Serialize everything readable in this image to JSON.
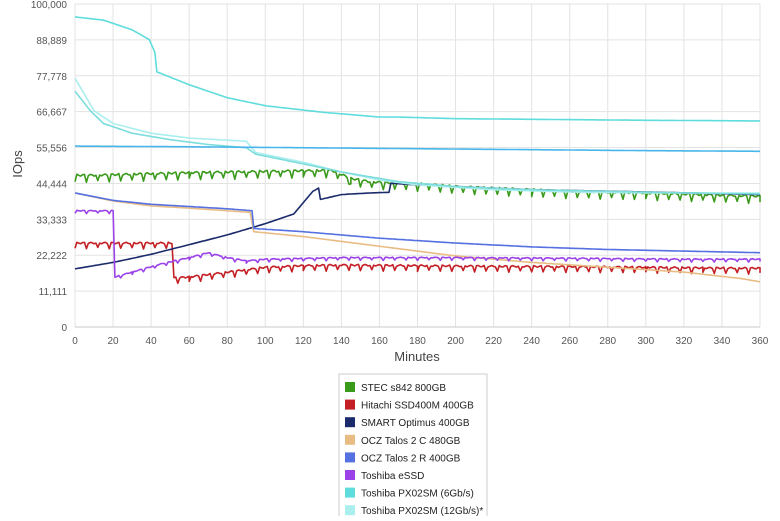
{
  "chart_data": {
    "type": "line",
    "title": "",
    "xlabel": "Minutes",
    "ylabel": "IOps",
    "xlim": [
      0,
      360
    ],
    "ylim": [
      0,
      100000
    ],
    "x_ticks": [
      0,
      20,
      40,
      60,
      80,
      100,
      120,
      140,
      160,
      180,
      200,
      220,
      240,
      260,
      280,
      300,
      320,
      340,
      360
    ],
    "y_ticks": [
      0,
      11111,
      22222,
      33333,
      44444,
      55556,
      66667,
      77778,
      88889,
      100000
    ],
    "y_tick_labels": [
      "0",
      "11,111",
      "22,222",
      "33,333",
      "44,444",
      "55,556",
      "66,667",
      "77,778",
      "88,889",
      "100,000"
    ],
    "grid": true,
    "legend_position": "bottom-center",
    "series": [
      {
        "name": "STEC s842 800GB",
        "color": "#3a9a1b",
        "points": [
          [
            0,
            47000
          ],
          [
            10,
            47000
          ],
          [
            22,
            47200
          ],
          [
            40,
            47500
          ],
          [
            60,
            47800
          ],
          [
            80,
            48000
          ],
          [
            100,
            48200
          ],
          [
            120,
            48400
          ],
          [
            135,
            48500
          ],
          [
            145,
            46000
          ],
          [
            155,
            45000
          ],
          [
            170,
            44500
          ],
          [
            185,
            44200
          ],
          [
            200,
            43500
          ],
          [
            220,
            43000
          ],
          [
            240,
            42500
          ],
          [
            260,
            42000
          ],
          [
            280,
            41800
          ],
          [
            300,
            41500
          ],
          [
            320,
            41200
          ],
          [
            340,
            40800
          ],
          [
            360,
            40500
          ]
        ],
        "sawtooth": 2000
      },
      {
        "name": "Hitachi SSD400M 400GB",
        "color": "#c31f24",
        "points": [
          [
            0,
            26000
          ],
          [
            20,
            26000
          ],
          [
            40,
            26000
          ],
          [
            51,
            26000
          ],
          [
            52,
            15200
          ],
          [
            60,
            15500
          ],
          [
            80,
            17000
          ],
          [
            100,
            18500
          ],
          [
            120,
            19000
          ],
          [
            140,
            19200
          ],
          [
            180,
            19000
          ],
          [
            220,
            18800
          ],
          [
            260,
            18700
          ],
          [
            300,
            18500
          ],
          [
            330,
            18300
          ],
          [
            360,
            18200
          ]
        ],
        "sawtooth": 1600
      },
      {
        "name": "SMART Optimus 400GB",
        "color": "#1b2a6b",
        "points": [
          [
            0,
            18000
          ],
          [
            20,
            20000
          ],
          [
            40,
            22500
          ],
          [
            60,
            25500
          ],
          [
            80,
            28500
          ],
          [
            100,
            32000
          ],
          [
            115,
            35000
          ],
          [
            125,
            42000
          ],
          [
            128,
            43000
          ],
          [
            129,
            39500
          ],
          [
            140,
            41000
          ],
          [
            155,
            41500
          ],
          [
            165,
            41700
          ],
          [
            166,
            44500
          ],
          [
            180,
            44000
          ],
          [
            200,
            43500
          ],
          [
            240,
            42500
          ],
          [
            300,
            41800
          ],
          [
            360,
            41000
          ]
        ],
        "sawtooth": 0
      },
      {
        "name": "OCZ Talos 2 C 480GB",
        "color": "#e9bc84",
        "points": [
          [
            0,
            41500
          ],
          [
            20,
            39000
          ],
          [
            40,
            37500
          ],
          [
            60,
            36800
          ],
          [
            80,
            36000
          ],
          [
            92,
            35500
          ],
          [
            94,
            29500
          ],
          [
            120,
            28000
          ],
          [
            160,
            25000
          ],
          [
            200,
            22000
          ],
          [
            240,
            20000
          ],
          [
            280,
            18500
          ],
          [
            320,
            17000
          ],
          [
            350,
            15000
          ],
          [
            360,
            14000
          ]
        ],
        "sawtooth": 0
      },
      {
        "name": "OCZ Talos 2 R 400GB",
        "color": "#5570e0",
        "points": [
          [
            0,
            41500
          ],
          [
            20,
            39200
          ],
          [
            40,
            38000
          ],
          [
            60,
            37300
          ],
          [
            80,
            36600
          ],
          [
            93,
            36000
          ],
          [
            94,
            30500
          ],
          [
            120,
            29500
          ],
          [
            160,
            27500
          ],
          [
            200,
            26000
          ],
          [
            240,
            24800
          ],
          [
            280,
            24000
          ],
          [
            320,
            23500
          ],
          [
            360,
            23000
          ]
        ],
        "sawtooth": 0
      },
      {
        "name": "Toshiba eSSD",
        "color": "#9b43e8",
        "points": [
          [
            0,
            36000
          ],
          [
            20,
            36000
          ],
          [
            21,
            15500
          ],
          [
            30,
            17000
          ],
          [
            45,
            19500
          ],
          [
            60,
            21500
          ],
          [
            70,
            23000
          ],
          [
            80,
            21500
          ],
          [
            90,
            20500
          ],
          [
            100,
            21000
          ],
          [
            140,
            21500
          ],
          [
            200,
            21500
          ],
          [
            260,
            21300
          ],
          [
            320,
            21000
          ],
          [
            360,
            21000
          ]
        ],
        "sawtooth": 800
      },
      {
        "name": "Toshiba PX02SM (6Gb/s)",
        "color": "#5fdcdc",
        "points": [
          [
            0,
            96000
          ],
          [
            15,
            95000
          ],
          [
            30,
            92000
          ],
          [
            39,
            89000
          ],
          [
            42,
            85000
          ],
          [
            43,
            79000
          ],
          [
            60,
            75000
          ],
          [
            80,
            71000
          ],
          [
            100,
            68500
          ],
          [
            130,
            66500
          ],
          [
            150,
            65500
          ],
          [
            160,
            65000
          ],
          [
            170,
            65000
          ],
          [
            200,
            64500
          ],
          [
            240,
            64300
          ],
          [
            300,
            64000
          ],
          [
            360,
            63800
          ]
        ],
        "sawtooth": 0
      },
      {
        "name": "Toshiba PX02SM (12Gb/s)*",
        "color": "#aaeeee",
        "points": [
          [
            0,
            77000
          ],
          [
            5,
            72000
          ],
          [
            10,
            67000
          ],
          [
            20,
            63000
          ],
          [
            40,
            60000
          ],
          [
            60,
            58500
          ],
          [
            75,
            58000
          ],
          [
            90,
            57500
          ],
          [
            95,
            54000
          ],
          [
            120,
            51000
          ],
          [
            140,
            48000
          ],
          [
            160,
            45500
          ],
          [
            180,
            44000
          ],
          [
            220,
            42500
          ],
          [
            260,
            41800
          ],
          [
            300,
            41500
          ],
          [
            360,
            41500
          ]
        ],
        "sawtooth": 0
      },
      {
        "name": "",
        "color": "#7ddcdc",
        "points": [
          [
            0,
            73000
          ],
          [
            8,
            67000
          ],
          [
            15,
            63000
          ],
          [
            30,
            60000
          ],
          [
            50,
            58000
          ],
          [
            70,
            56500
          ],
          [
            90,
            55500
          ],
          [
            95,
            53500
          ],
          [
            120,
            50500
          ],
          [
            140,
            48000
          ],
          [
            170,
            45000
          ],
          [
            200,
            43500
          ],
          [
            240,
            42500
          ],
          [
            280,
            42000
          ],
          [
            320,
            41500
          ],
          [
            360,
            41200
          ]
        ],
        "sawtooth": 0
      },
      {
        "name": "",
        "color": "#48b6ea",
        "points": [
          [
            0,
            56000
          ],
          [
            60,
            55800
          ],
          [
            120,
            55500
          ],
          [
            180,
            55200
          ],
          [
            240,
            54900
          ],
          [
            300,
            54600
          ],
          [
            360,
            54400
          ]
        ],
        "sawtooth": 0
      }
    ]
  }
}
